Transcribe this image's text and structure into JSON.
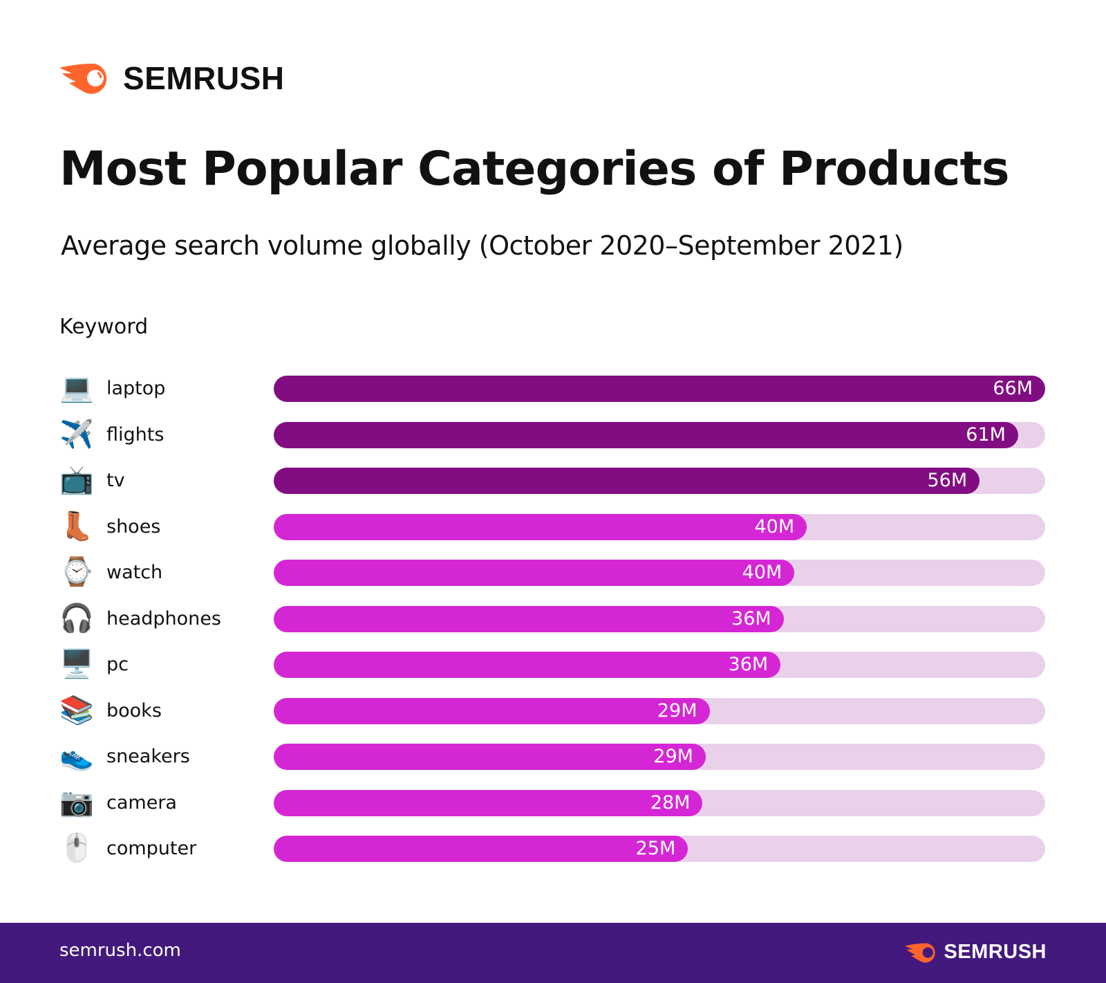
{
  "brand": {
    "name": "SEMRUSH",
    "accent": "#ff642d"
  },
  "title": "Most Popular Categories of Products",
  "subtitle": "Average search volume globally (October 2020–September 2021)",
  "footer": {
    "url": "semrush.com",
    "brand": "SEMRUSH",
    "background": "#43197d"
  },
  "chart_data": {
    "type": "bar",
    "orientation": "horizontal",
    "column_header": "Keyword",
    "colors": {
      "top3": "#820c82",
      "rest": "#d526d5",
      "track": "#ead1ea"
    },
    "rows": [
      {
        "keyword": "laptop",
        "icon": "💻",
        "value": 66,
        "label": "66M",
        "fill_pct": 100
      },
      {
        "keyword": "flights",
        "icon": "✈️",
        "value": 61,
        "label": "61M",
        "fill_pct": 96.5
      },
      {
        "keyword": "tv",
        "icon": "📺",
        "value": 56,
        "label": "56M",
        "fill_pct": 91.5
      },
      {
        "keyword": "shoes",
        "icon": "👢",
        "value": 40,
        "label": "40M",
        "fill_pct": 69.1
      },
      {
        "keyword": "watch",
        "icon": "⌚",
        "value": 40,
        "label": "40M",
        "fill_pct": 67.5
      },
      {
        "keyword": "headphones",
        "icon": "🎧",
        "value": 36,
        "label": "36M",
        "fill_pct": 66.1
      },
      {
        "keyword": "pc",
        "icon": "🖥️",
        "value": 36,
        "label": "36M",
        "fill_pct": 65.7
      },
      {
        "keyword": "books",
        "icon": "📚",
        "value": 29,
        "label": "29M",
        "fill_pct": 56.5
      },
      {
        "keyword": "sneakers",
        "icon": "👟",
        "value": 29,
        "label": "29M",
        "fill_pct": 56.0
      },
      {
        "keyword": "camera",
        "icon": "📷",
        "value": 28,
        "label": "28M",
        "fill_pct": 55.6
      },
      {
        "keyword": "computer",
        "icon": "🖱️",
        "value": 25,
        "label": "25M",
        "fill_pct": 53.7
      }
    ]
  }
}
